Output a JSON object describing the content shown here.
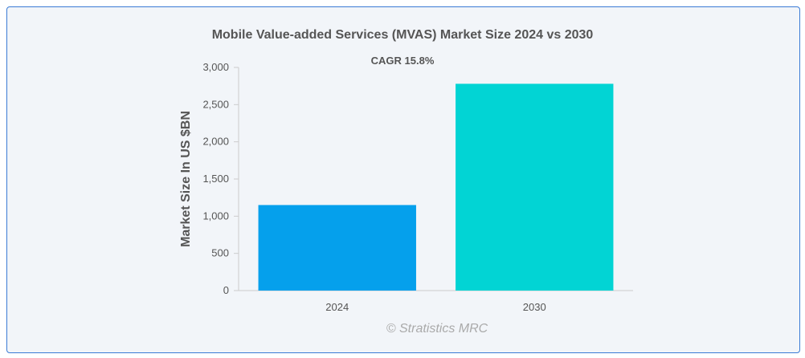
{
  "chart_data": {
    "type": "bar",
    "title": "Mobile Value-added Services (MVAS) Market Size 2024 vs 2030",
    "annotation": "CAGR 15.8%",
    "xlabel": "",
    "ylabel": "Market Size In US $BN",
    "categories": [
      "2024",
      "2030"
    ],
    "values": [
      1150,
      2780
    ],
    "colors": [
      "#05a0ec",
      "#02d4d4"
    ],
    "ylim": [
      0,
      3000
    ],
    "yticks": [
      "0",
      "500",
      "1,000",
      "1,500",
      "2,000",
      "2,500",
      "3,000"
    ],
    "grid": false,
    "legend": "none"
  },
  "watermark": "© Stratistics MRC"
}
